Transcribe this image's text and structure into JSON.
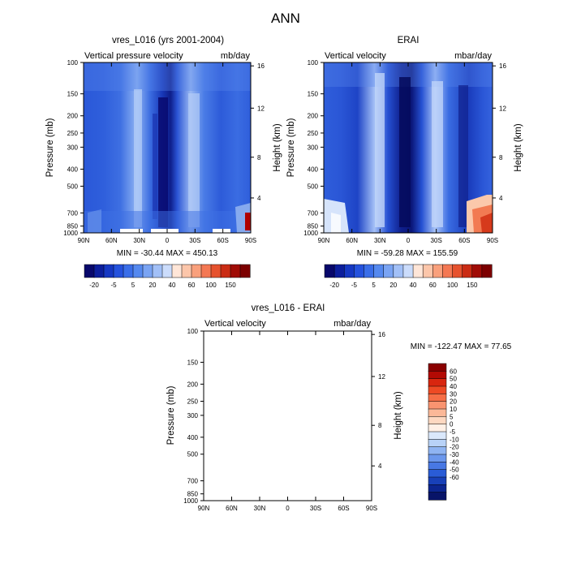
{
  "figure": {
    "title": "ANN"
  },
  "chart_data": [
    {
      "type": "heatmap",
      "title": "vres_L016 (yrs 2001-2004)",
      "left_label": "Vertical pressure velocity",
      "right_label": "mb/day",
      "ylabel": "Pressure (mb)",
      "ylabel_right": "Height (km)",
      "pressure_ticks": [
        "100",
        "150",
        "200",
        "250",
        "300",
        "400",
        "500",
        "700",
        "850",
        "1000"
      ],
      "height_ticks": [
        "16",
        "12",
        "8",
        "4"
      ],
      "x_ticks": [
        "90N",
        "60N",
        "30N",
        "0",
        "30S",
        "60S",
        "90S"
      ],
      "stats": "MIN = -30.44   MAX = 450.13",
      "colorbar": {
        "labels": [
          "-20",
          "-5",
          "5",
          "20",
          "40",
          "60",
          "100",
          "150"
        ],
        "colors": [
          "#08086b",
          "#0c1e9c",
          "#1638c3",
          "#2552dd",
          "#3a6ee8",
          "#5589ef",
          "#7aa4f3",
          "#a2c0f7",
          "#cbdcfb",
          "#ffe6d8",
          "#fcc6aa",
          "#f9a07c",
          "#f47853",
          "#e6522e",
          "#ca2c14",
          "#a00c06",
          "#7c0000"
        ],
        "orientation": "horizontal"
      },
      "value_range": [
        -30.44,
        450.13
      ]
    },
    {
      "type": "heatmap",
      "title": "ERAI",
      "left_label": "Vertical velocity",
      "right_label": "mbar/day",
      "ylabel": "Pressure (mb)",
      "ylabel_right": "Height (km)",
      "pressure_ticks": [
        "100",
        "150",
        "200",
        "250",
        "300",
        "400",
        "500",
        "700",
        "850",
        "1000"
      ],
      "height_ticks": [
        "16",
        "12",
        "8",
        "4"
      ],
      "x_ticks": [
        "90N",
        "60N",
        "30N",
        "0",
        "30S",
        "60S",
        "90S"
      ],
      "stats": "MIN = -59.28   MAX = 155.59",
      "colorbar": {
        "labels": [
          "-20",
          "-5",
          "5",
          "20",
          "40",
          "60",
          "100",
          "150"
        ],
        "colors": [
          "#08086b",
          "#0c1e9c",
          "#1638c3",
          "#2552dd",
          "#3a6ee8",
          "#5589ef",
          "#7aa4f3",
          "#a2c0f7",
          "#cbdcfb",
          "#ffe6d8",
          "#fcc6aa",
          "#f9a07c",
          "#f47853",
          "#e6522e",
          "#ca2c14",
          "#a00c06",
          "#7c0000"
        ],
        "orientation": "horizontal"
      },
      "value_range": [
        -59.28,
        155.59
      ]
    },
    {
      "type": "heatmap",
      "title": "vres_L016 - ERAI",
      "left_label": "Vertical velocity",
      "right_label": "mbar/day",
      "ylabel": "Pressure (mb)",
      "ylabel_right": "Height (km)",
      "pressure_ticks": [
        "100",
        "150",
        "200",
        "250",
        "300",
        "400",
        "500",
        "700",
        "850",
        "1000"
      ],
      "height_ticks": [
        "16",
        "12",
        "8",
        "4"
      ],
      "x_ticks": [
        "90N",
        "60N",
        "30N",
        "0",
        "30S",
        "60S",
        "90S"
      ],
      "stats": "MIN = -122.47   MAX =  77.65",
      "colorbar": {
        "labels": [
          "60",
          "50",
          "40",
          "30",
          "20",
          "10",
          "5",
          "0",
          "-5",
          "-10",
          "-20",
          "-30",
          "-40",
          "-50",
          "-60"
        ],
        "colors": [
          "#8a0000",
          "#b30a04",
          "#d8260f",
          "#ee4a24",
          "#f66e46",
          "#f99470",
          "#fbb898",
          "#fdd8c1",
          "#fff0e6",
          "#dae8fb",
          "#b8d2f7",
          "#8fb4f2",
          "#6b97ec",
          "#4878e4",
          "#2a5cd6",
          "#1840b8",
          "#0c2590",
          "#081468"
        ],
        "orientation": "vertical"
      },
      "value_range": [
        -122.47,
        77.65
      ]
    }
  ]
}
